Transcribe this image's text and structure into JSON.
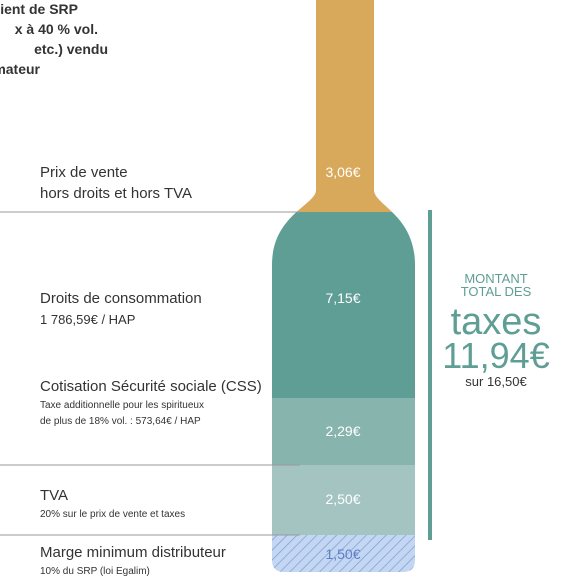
{
  "intro": [
    "ient de SRP",
    "x à 40 % vol.",
    "etc.) vendu",
    "nmateur"
  ],
  "segments": [
    {
      "label": [
        "Prix de vente",
        "hors droits et hors TVA"
      ],
      "detail": [],
      "value": "3,06€"
    },
    {
      "label": [
        "Droits de consommation"
      ],
      "detail": [
        "1 786,59€ / HAP"
      ],
      "value": "7,15€"
    },
    {
      "label": [
        "Cotisation Sécurité sociale (CSS)"
      ],
      "detail": [
        "Taxe additionnelle pour les spiritueux",
        "de plus de 18% vol. : 573,64€ / HAP"
      ],
      "value": "2,29€"
    },
    {
      "label": [
        "TVA"
      ],
      "detail": [
        "20% sur le prix de vente et taxes"
      ],
      "value": "2,50€"
    },
    {
      "label": [
        "Marge minimum distributeur"
      ],
      "detail": [
        "10% du SRP (loi Egalim)"
      ],
      "value": "1,50€"
    }
  ],
  "total": {
    "line1": "MONTANT",
    "line2": "TOTAL DES",
    "word": "taxes",
    "amount": "11,94€",
    "base": "sur 16,50€"
  }
}
